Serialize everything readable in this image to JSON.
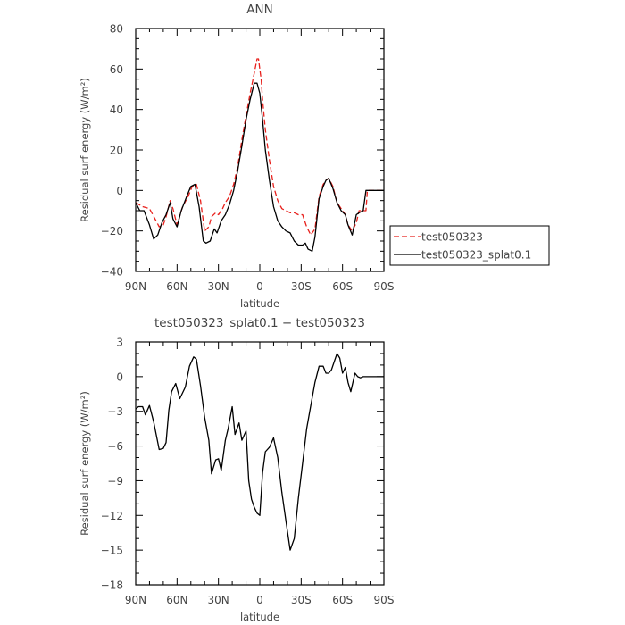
{
  "chart_data": [
    {
      "type": "line",
      "title": "ANN",
      "xlabel": "latitude",
      "ylabel": "Residual surf energy (W/m²)",
      "xlim": [
        90,
        -90
      ],
      "ylim": [
        -40,
        80
      ],
      "xticks": [
        90,
        60,
        30,
        0,
        -30,
        -60,
        -90
      ],
      "xtick_labels": [
        "90N",
        "60N",
        "30N",
        "0",
        "30S",
        "60S",
        "90S"
      ],
      "yticks": [
        -40,
        -20,
        0,
        20,
        40,
        60,
        80
      ],
      "ytick_labels": [
        "−40",
        "−20",
        "0",
        "20",
        "40",
        "60",
        "80"
      ],
      "legend": {
        "position": "right",
        "entries": [
          "test050323",
          "test050323_splat0.1"
        ]
      },
      "series": [
        {
          "name": "test050323",
          "color": "#e8201c",
          "style": "dashed",
          "x": [
            90,
            85,
            80,
            76,
            73,
            70,
            68,
            65,
            63,
            60,
            56,
            52,
            49,
            46,
            43,
            40,
            37,
            35,
            32,
            30,
            27,
            25,
            22,
            19,
            16,
            13,
            10,
            7,
            4,
            2,
            1,
            -1,
            -2,
            -4,
            -7,
            -10,
            -13,
            -16,
            -19,
            -22,
            -25,
            -28,
            -31,
            -34,
            -37,
            -40,
            -43,
            -46,
            -48,
            -50,
            -53,
            -56,
            -59,
            -62,
            -64,
            -67,
            -70,
            -72,
            -75,
            -77,
            -78,
            -80,
            -82,
            -85,
            -88,
            -90
          ],
          "y": [
            -6,
            -8,
            -9,
            -14,
            -18,
            -17,
            -13,
            -5,
            -9,
            -17,
            -8,
            -3,
            2,
            3,
            -5,
            -20,
            -18,
            -13,
            -11,
            -12,
            -9,
            -6,
            -3,
            3,
            12,
            25,
            37,
            48,
            58,
            65,
            65,
            55,
            45,
            30,
            15,
            2,
            -5,
            -9,
            -10,
            -11,
            -11,
            -12,
            -12,
            -18,
            -22,
            -19,
            -3,
            3,
            5,
            6,
            2,
            -6,
            -9,
            -12,
            -17,
            -20,
            -16,
            -10,
            -10,
            -10,
            0,
            0,
            0,
            0,
            0,
            0
          ]
        },
        {
          "name": "test050323_splat0.1",
          "color": "#000000",
          "style": "solid",
          "x": [
            90,
            87,
            84,
            80,
            77,
            74,
            71,
            68,
            65,
            63,
            60,
            57,
            53,
            50,
            47,
            44,
            41,
            39,
            36,
            33,
            31,
            28,
            25,
            22,
            19,
            16,
            13,
            10,
            7,
            4,
            2,
            0,
            -2,
            -4,
            -7,
            -10,
            -13,
            -16,
            -19,
            -22,
            -25,
            -28,
            -31,
            -33,
            -35,
            -38,
            -40,
            -43,
            -46,
            -48,
            -50,
            -53,
            -56,
            -59,
            -62,
            -64,
            -67,
            -70,
            -72,
            -75,
            -77,
            -78,
            -80,
            -82,
            -85,
            -88,
            -90
          ],
          "y": [
            -6,
            -10,
            -10,
            -17,
            -24,
            -22,
            -16,
            -12,
            -6,
            -14,
            -18,
            -10,
            -3,
            2,
            3,
            -8,
            -25,
            -26,
            -25,
            -19,
            -21,
            -15,
            -12,
            -7,
            0,
            10,
            22,
            35,
            45,
            53,
            53,
            48,
            35,
            20,
            5,
            -8,
            -15,
            -18,
            -20,
            -21,
            -25,
            -27,
            -27,
            -26,
            -29,
            -30,
            -23,
            -4,
            2,
            5,
            6,
            1,
            -6,
            -10,
            -12,
            -17,
            -22,
            -12,
            -11,
            -10,
            0,
            0,
            0,
            0,
            0,
            0,
            0
          ]
        }
      ]
    },
    {
      "type": "line",
      "title": "test050323_splat0.1  −  test050323",
      "xlabel": "latitude",
      "ylabel": "Residual surf energy (W/m²)",
      "xlim": [
        90,
        -90
      ],
      "ylim": [
        -18,
        3
      ],
      "xticks": [
        90,
        60,
        30,
        0,
        -30,
        -60,
        -90
      ],
      "xtick_labels": [
        "90N",
        "60N",
        "30N",
        "0",
        "30S",
        "60S",
        "90S"
      ],
      "yticks": [
        -18,
        -15,
        -12,
        -9,
        -6,
        -3,
        0,
        3
      ],
      "ytick_labels": [
        "−18",
        "−15",
        "−12",
        "−9",
        "−6",
        "−3",
        "0",
        "3"
      ],
      "series": [
        {
          "color": "#000000",
          "style": "solid",
          "x": [
            90,
            88,
            85,
            83,
            80,
            77,
            73,
            70,
            68,
            66,
            64,
            61,
            58,
            54,
            51,
            48,
            46,
            43,
            40,
            37,
            35,
            32,
            30,
            28,
            25,
            23,
            20,
            18,
            15,
            13,
            10,
            8,
            6,
            4,
            2,
            0,
            -2,
            -4,
            -7,
            -10,
            -13,
            -16,
            -19,
            -22,
            -25,
            -28,
            -31,
            -34,
            -37,
            -40,
            -43,
            -46,
            -48,
            -50,
            -52,
            -54,
            -56,
            -58,
            -60,
            -62,
            -64,
            -66,
            -69,
            -71,
            -73,
            -75,
            -77,
            -79,
            -82,
            -85,
            -88,
            -90
          ],
          "y": [
            -2.8,
            -2.6,
            -2.6,
            -3.3,
            -2.5,
            -3.9,
            -6.3,
            -6.2,
            -5.7,
            -2.9,
            -1.3,
            -0.6,
            -1.9,
            -0.9,
            0.9,
            1.7,
            1.5,
            -0.8,
            -3.5,
            -5.5,
            -8.4,
            -7.2,
            -7.1,
            -8.1,
            -5.5,
            -4.5,
            -2.6,
            -5.0,
            -4.0,
            -5.5,
            -4.7,
            -9.0,
            -10.6,
            -11.3,
            -11.8,
            -12.0,
            -8.3,
            -6.5,
            -6.1,
            -5.3,
            -7.0,
            -10.0,
            -12.5,
            -15.0,
            -14.0,
            -10.5,
            -7.5,
            -4.5,
            -2.5,
            -0.5,
            0.9,
            0.9,
            0.3,
            0.3,
            0.6,
            1.3,
            2.0,
            1.6,
            0.3,
            0.8,
            -0.5,
            -1.3,
            0.3,
            0.0,
            -0.1,
            0.0,
            0.0,
            0.0,
            0.0,
            0.0,
            0.0,
            0.0
          ]
        }
      ]
    }
  ]
}
